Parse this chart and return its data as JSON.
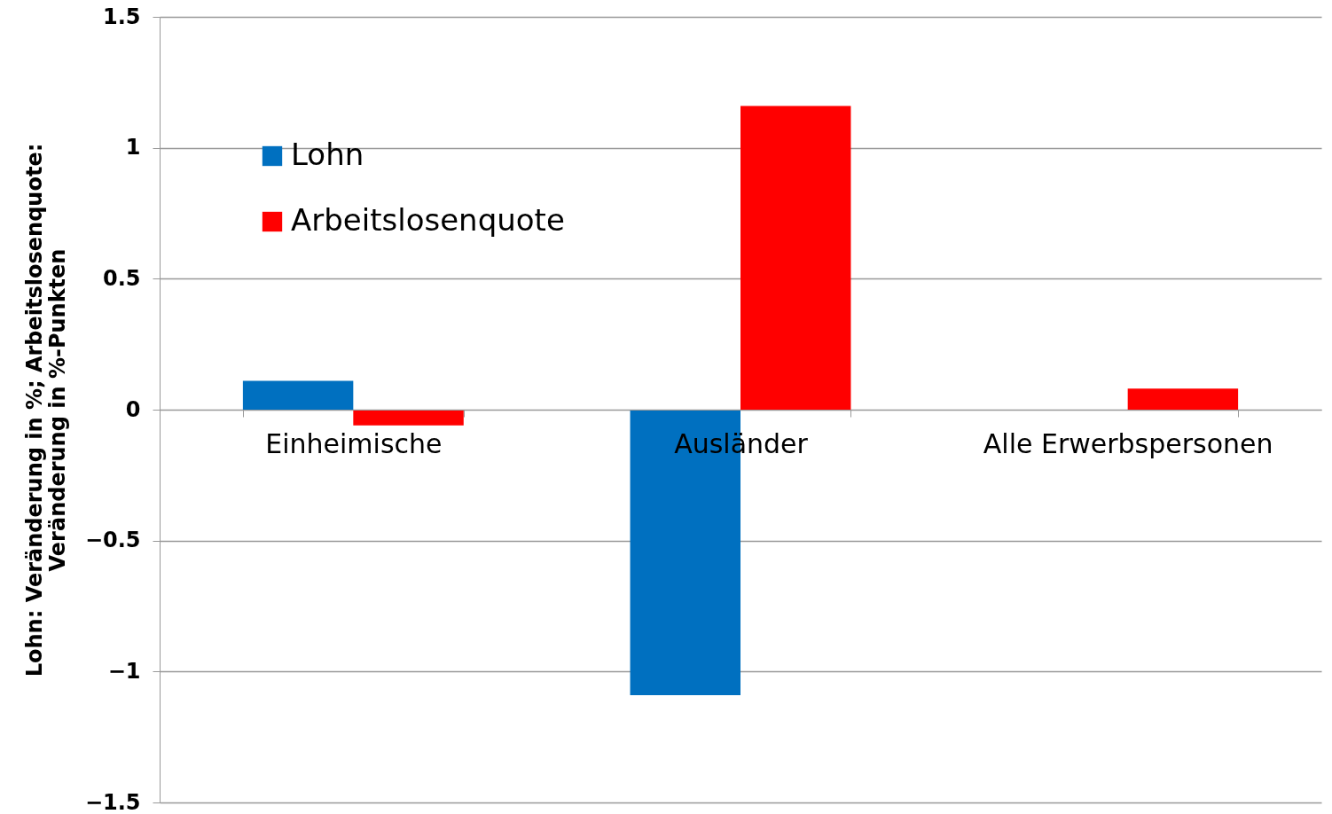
{
  "chart_data": {
    "type": "bar",
    "ylabel": "Lohn: Veränderung in %; Arbeitslosenquote:\nVeränderung in %-Punkten",
    "categories": [
      "Einheimische",
      "Ausländer",
      "Alle Erwerbspersonen"
    ],
    "series": [
      {
        "name": "Lohn",
        "color": "#0070c0",
        "values": [
          0.11,
          -1.09,
          0
        ]
      },
      {
        "name": "Arbeitslosenquote",
        "color": "#ff0000",
        "values": [
          -0.06,
          1.16,
          0.08
        ]
      }
    ],
    "ylim": [
      -1.5,
      1.5
    ],
    "yticks": [
      -1.5,
      -1,
      -0.5,
      0,
      0.5,
      1,
      1.5
    ],
    "grid": "y",
    "legend": "top left"
  }
}
